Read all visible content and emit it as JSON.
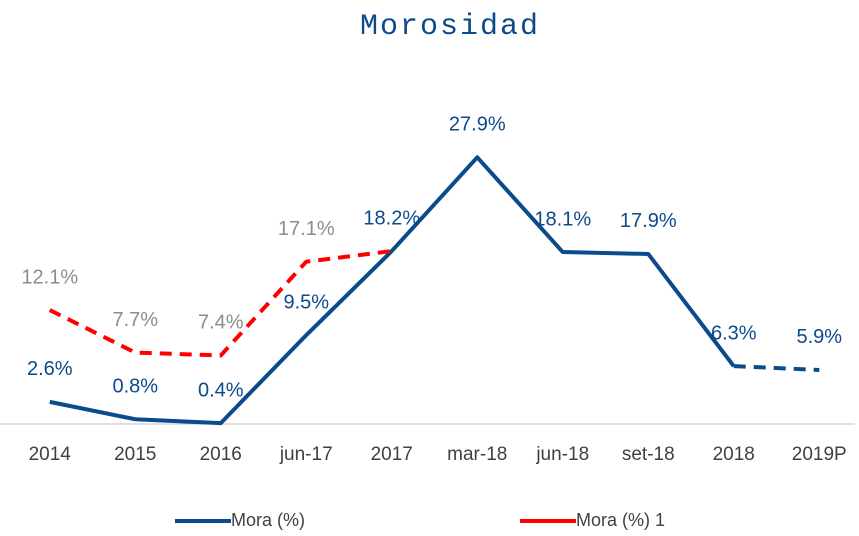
{
  "chart_data": {
    "type": "line",
    "title": "Morosidad",
    "categories": [
      "2014",
      "2015",
      "2016",
      "jun-17",
      "2017",
      "mar-18",
      "jun-18",
      "set-18",
      "2018",
      "2019P"
    ],
    "series": [
      {
        "name": "Mora (%)",
        "color": "#0b4a8b",
        "label_color": "#0b4a8b",
        "values": [
          2.6,
          0.8,
          0.4,
          9.5,
          18.2,
          27.9,
          18.1,
          17.9,
          6.3,
          5.9
        ],
        "value_labels": [
          "2.6%",
          "0.8%",
          "0.4%",
          "9.5%",
          "18.2%",
          "27.9%",
          "18.1%",
          "17.9%",
          "6.3%",
          "5.9%"
        ]
      },
      {
        "name": "Mora (%) 1",
        "color": "#ff0000",
        "label_color": "#8c8c8c",
        "values": [
          12.1,
          7.7,
          7.4,
          17.1,
          18.2,
          null,
          null,
          null,
          null,
          null
        ],
        "value_labels": [
          "12.1%",
          "7.7%",
          "7.4%",
          "17.1%",
          null,
          null,
          null,
          null,
          null,
          null
        ]
      }
    ],
    "ylim": [
      0,
      30
    ],
    "grid": false
  }
}
